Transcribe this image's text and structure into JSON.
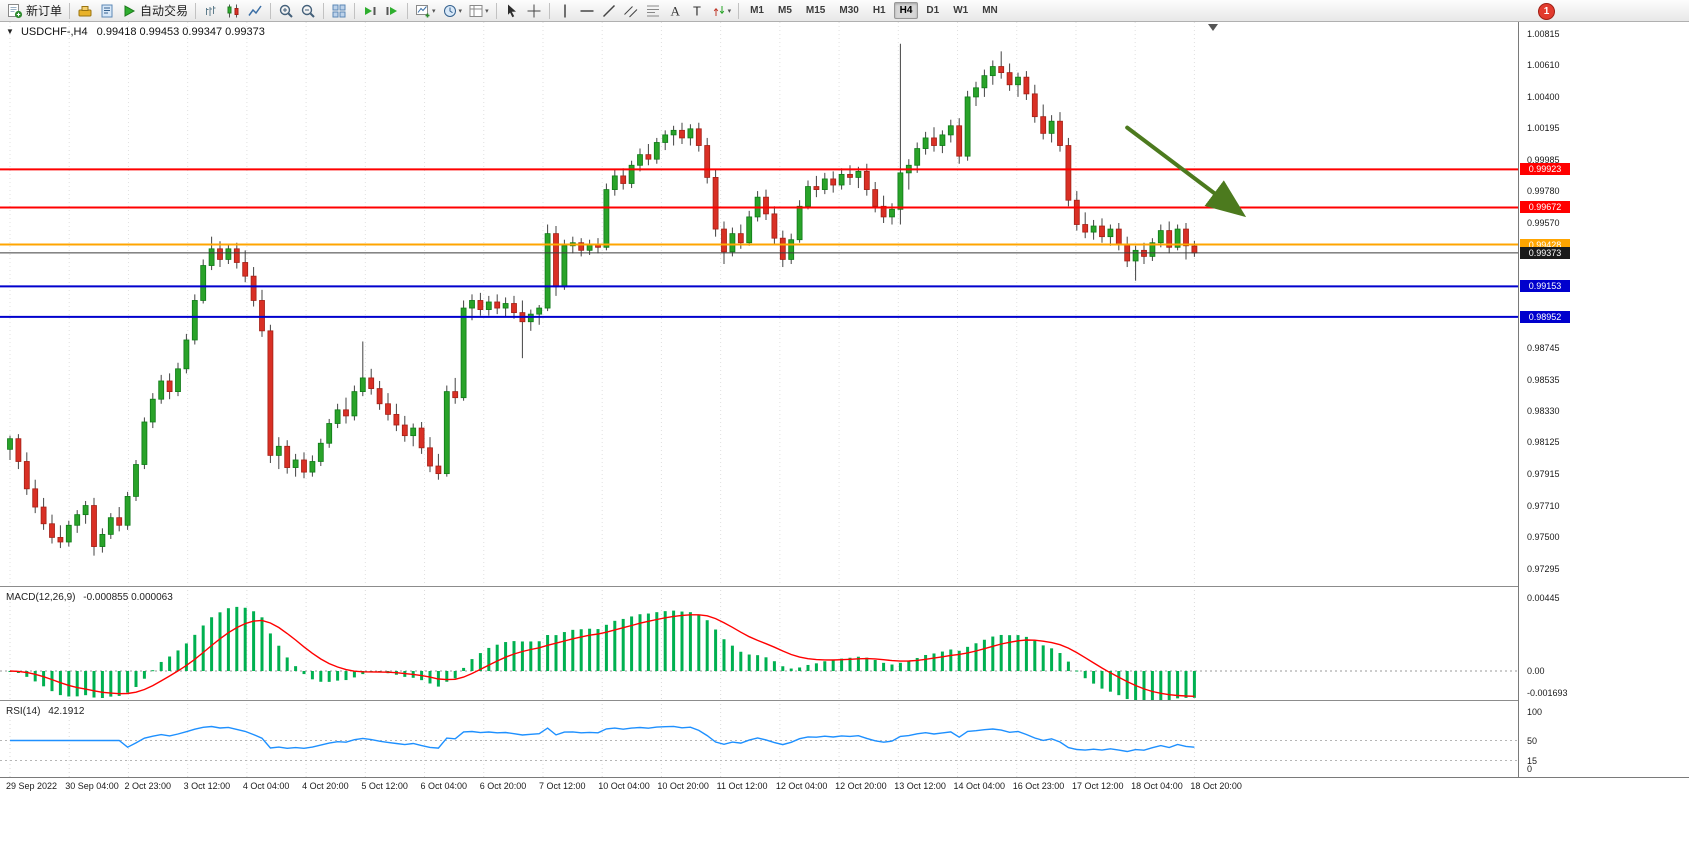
{
  "toolbar": {
    "new_order_label": "新订单",
    "autotrading_label": "自动交易",
    "timeframes": [
      "M1",
      "M5",
      "M15",
      "M30",
      "H1",
      "H4",
      "D1",
      "W1",
      "MN"
    ],
    "active_timeframe": "H4",
    "notification_badge": "1",
    "groups": [
      [
        {
          "icon": "new-order",
          "name": "new-order-button",
          "label": "新订单"
        }
      ],
      [
        {
          "icon": "expert-advisors"
        },
        {
          "icon": "scripts"
        },
        {
          "icon": "autotrading-play",
          "name": "autotrading-button",
          "label": "自动交易"
        }
      ],
      [
        {
          "icon": "bar-chart"
        },
        {
          "icon": "candlestick-chart"
        },
        {
          "icon": "line-chart"
        }
      ],
      [
        {
          "icon": "zoom-in"
        },
        {
          "icon": "zoom-out"
        }
      ],
      [
        {
          "icon": "tile-windows"
        }
      ],
      [
        {
          "icon": "auto-scroll"
        },
        {
          "icon": "chart-shift"
        }
      ],
      [
        {
          "icon": "new-chart",
          "dropdown": true
        },
        {
          "icon": "profiles",
          "dropdown": true
        },
        {
          "icon": "templates",
          "dropdown": true
        }
      ],
      [
        {
          "icon": "cursor"
        },
        {
          "icon": "crosshair"
        }
      ],
      [
        {
          "icon": "vertical-line"
        },
        {
          "icon": "horizontal-line"
        },
        {
          "icon": "trendline"
        },
        {
          "icon": "channel"
        },
        {
          "icon": "fibonacci"
        },
        {
          "icon": "text"
        },
        {
          "icon": "text-label"
        },
        {
          "icon": "arrows",
          "dropdown": true
        }
      ]
    ]
  },
  "chart": {
    "expander_icon": "▼",
    "shift_marker_icon": "▼"
  },
  "chart_data": {
    "type": "candlestick",
    "symbol": "USDCHF-",
    "timeframe": "H4",
    "title": "USDCHF-,H4",
    "ohlc_text": "0.99418 0.99453 0.99347 0.99373",
    "ohlc_display": {
      "open": "0.99418",
      "high": "0.99453",
      "low": "0.99347",
      "close": "0.99373"
    },
    "up_color": "#29A329",
    "up_border": "#0F7A18",
    "down_color": "#D93025",
    "down_border": "#A32016",
    "wick_color": "#444444",
    "grid_color": "#E0E0E0",
    "price_range": {
      "min": 0.972,
      "max": 1.0088
    },
    "price_axis_ticks": [
      "1.00815",
      "1.00610",
      "1.00400",
      "1.00195",
      "0.99985",
      "0.99780",
      "0.99570",
      "0.98745",
      "0.98535",
      "0.98330",
      "0.98125",
      "0.97915",
      "0.97710",
      "0.97500",
      "0.97295"
    ],
    "hlines": [
      {
        "price": 0.99923,
        "label": "0.99923",
        "color": "#FF0000",
        "width": 2
      },
      {
        "price": 0.99672,
        "label": "0.99672",
        "color": "#FF0000",
        "width": 2
      },
      {
        "price": 0.99428,
        "label": "0.99428",
        "color": "#FFA500",
        "width": 2
      },
      {
        "price": 0.99373,
        "label": "0.99373",
        "color": "#3C3C3C",
        "width": 1,
        "is_current": true
      },
      {
        "price": 0.99153,
        "label": "0.99153",
        "color": "#0000CD",
        "width": 2
      },
      {
        "price": 0.98952,
        "label": "0.98952",
        "color": "#0000CD",
        "width": 2
      }
    ],
    "arrow": {
      "i1": 133,
      "p1": 1.00198,
      "i2": 146.4,
      "p2": 0.9964,
      "color": "#4C7A1E"
    },
    "time_labels": [
      "29 Sep 2022",
      "30 Sep 04:00",
      "2 Oct 23:00",
      "3 Oct 12:00",
      "4 Oct 04:00",
      "4 Oct 20:00",
      "5 Oct 12:00",
      "6 Oct 04:00",
      "6 Oct 20:00",
      "7 Oct 12:00",
      "10 Oct 04:00",
      "10 Oct 20:00",
      "11 Oct 12:00",
      "12 Oct 04:00",
      "12 Oct 20:00",
      "13 Oct 12:00",
      "14 Oct 04:00",
      "16 Oct 23:00",
      "17 Oct 12:00",
      "18 Oct 04:00",
      "18 Oct 20:00"
    ],
    "macd": {
      "title": "MACD(12,26,9)",
      "values_text": "-0.000855 0.000063",
      "params": [
        12,
        26,
        9
      ],
      "axis_ticks": [
        {
          "value": 0.00445,
          "label": "0.00445"
        },
        {
          "value": 0,
          "label": "0.00"
        },
        {
          "value": -0.001693,
          "label": "-0.001693"
        }
      ],
      "range": {
        "min": -0.00164,
        "max": 0.0048
      },
      "histogram_color": "#00B050",
      "signal_color": "#FF0000"
    },
    "rsi": {
      "title": "RSI(14)",
      "value_text": "42.1912",
      "period": 14,
      "axis_ticks": [
        {
          "value": 100,
          "label": "100"
        },
        {
          "value": 50,
          "label": "50"
        },
        {
          "value": 15,
          "label": "15"
        },
        {
          "value": 0,
          "label": "0"
        }
      ],
      "levels": [
        50,
        15
      ],
      "range": {
        "min": -12,
        "max": 112
      },
      "line_color": "#1E90FF"
    },
    "candles": [
      [
        0.9808,
        0.9817,
        0.9801,
        0.9815
      ],
      [
        0.9815,
        0.9818,
        0.9795,
        0.98
      ],
      [
        0.98,
        0.9806,
        0.9778,
        0.9782
      ],
      [
        0.9782,
        0.9788,
        0.9766,
        0.977
      ],
      [
        0.977,
        0.9776,
        0.9755,
        0.9759
      ],
      [
        0.9759,
        0.9765,
        0.9746,
        0.975
      ],
      [
        0.975,
        0.9758,
        0.9743,
        0.9747
      ],
      [
        0.9747,
        0.9761,
        0.9744,
        0.9758
      ],
      [
        0.9758,
        0.9768,
        0.9753,
        0.9765
      ],
      [
        0.9765,
        0.9774,
        0.9759,
        0.9771
      ],
      [
        0.9771,
        0.9776,
        0.9738,
        0.9744
      ],
      [
        0.9744,
        0.9756,
        0.974,
        0.9752
      ],
      [
        0.9752,
        0.9766,
        0.9749,
        0.9763
      ],
      [
        0.9763,
        0.977,
        0.9754,
        0.9758
      ],
      [
        0.9758,
        0.978,
        0.9755,
        0.9777
      ],
      [
        0.9777,
        0.9801,
        0.9774,
        0.9798
      ],
      [
        0.9798,
        0.9829,
        0.9795,
        0.9826
      ],
      [
        0.9826,
        0.9845,
        0.9822,
        0.9841
      ],
      [
        0.9841,
        0.9857,
        0.9838,
        0.9853
      ],
      [
        0.9853,
        0.9858,
        0.9841,
        0.9846
      ],
      [
        0.9846,
        0.9865,
        0.9843,
        0.9861
      ],
      [
        0.9861,
        0.9884,
        0.9858,
        0.988
      ],
      [
        0.988,
        0.991,
        0.9877,
        0.9906
      ],
      [
        0.9906,
        0.9933,
        0.9904,
        0.9929
      ],
      [
        0.9929,
        0.9948,
        0.9926,
        0.994
      ],
      [
        0.994,
        0.9945,
        0.9928,
        0.9933
      ],
      [
        0.9933,
        0.9943,
        0.993,
        0.994
      ],
      [
        0.994,
        0.9944,
        0.9927,
        0.9931
      ],
      [
        0.9931,
        0.9939,
        0.9918,
        0.9922
      ],
      [
        0.9922,
        0.9928,
        0.9902,
        0.9906
      ],
      [
        0.9906,
        0.9913,
        0.9882,
        0.9886
      ],
      [
        0.9886,
        0.989,
        0.9799,
        0.9804
      ],
      [
        0.9804,
        0.9816,
        0.9795,
        0.981
      ],
      [
        0.981,
        0.9814,
        0.9792,
        0.9796
      ],
      [
        0.9796,
        0.9805,
        0.979,
        0.9801
      ],
      [
        0.9801,
        0.9806,
        0.9789,
        0.9793
      ],
      [
        0.9793,
        0.9804,
        0.979,
        0.98
      ],
      [
        0.98,
        0.9815,
        0.9797,
        0.9812
      ],
      [
        0.9812,
        0.9828,
        0.9809,
        0.9825
      ],
      [
        0.9825,
        0.9838,
        0.9822,
        0.9834
      ],
      [
        0.9834,
        0.9842,
        0.9825,
        0.983
      ],
      [
        0.983,
        0.985,
        0.9827,
        0.9846
      ],
      [
        0.9846,
        0.9879,
        0.9843,
        0.9855
      ],
      [
        0.9855,
        0.9861,
        0.9844,
        0.9848
      ],
      [
        0.9848,
        0.9853,
        0.9834,
        0.9838
      ],
      [
        0.9838,
        0.9845,
        0.9827,
        0.9831
      ],
      [
        0.9831,
        0.9838,
        0.982,
        0.9824
      ],
      [
        0.9824,
        0.983,
        0.9813,
        0.9817
      ],
      [
        0.9817,
        0.9825,
        0.981,
        0.9822
      ],
      [
        0.9822,
        0.9826,
        0.9805,
        0.9809
      ],
      [
        0.9809,
        0.9816,
        0.9793,
        0.9797
      ],
      [
        0.9797,
        0.9805,
        0.9788,
        0.9792
      ],
      [
        0.9792,
        0.985,
        0.979,
        0.9846
      ],
      [
        0.9846,
        0.9855,
        0.9838,
        0.9842
      ],
      [
        0.9842,
        0.9906,
        0.984,
        0.9901
      ],
      [
        0.9901,
        0.991,
        0.9893,
        0.9906
      ],
      [
        0.9906,
        0.9911,
        0.9896,
        0.99
      ],
      [
        0.99,
        0.9909,
        0.9896,
        0.9905
      ],
      [
        0.9905,
        0.991,
        0.9897,
        0.9901
      ],
      [
        0.9901,
        0.9908,
        0.9895,
        0.9904
      ],
      [
        0.9904,
        0.9909,
        0.9894,
        0.9898
      ],
      [
        0.9898,
        0.9906,
        0.9868,
        0.9892
      ],
      [
        0.9892,
        0.99,
        0.9886,
        0.9897
      ],
      [
        0.9897,
        0.9903,
        0.989,
        0.9901
      ],
      [
        0.9901,
        0.9956,
        0.9899,
        0.995
      ],
      [
        0.995,
        0.9955,
        0.9909,
        0.9915
      ],
      [
        0.9915,
        0.9946,
        0.9913,
        0.9942
      ],
      [
        0.9942,
        0.9948,
        0.9937,
        0.9944
      ],
      [
        0.9944,
        0.9947,
        0.9935,
        0.9939
      ],
      [
        0.9939,
        0.9946,
        0.9936,
        0.9943
      ],
      [
        0.9943,
        0.9947,
        0.9937,
        0.9941
      ],
      [
        0.9941,
        0.9983,
        0.9939,
        0.9979
      ],
      [
        0.9979,
        0.9992,
        0.9975,
        0.9988
      ],
      [
        0.9988,
        0.9993,
        0.9979,
        0.9983
      ],
      [
        0.9983,
        0.9998,
        0.998,
        0.9995
      ],
      [
        0.9995,
        1.0006,
        0.9991,
        1.0002
      ],
      [
        1.0002,
        1.0009,
        0.9995,
        0.9999
      ],
      [
        0.9999,
        1.0013,
        0.9996,
        1.001
      ],
      [
        1.001,
        1.0018,
        1.0005,
        1.0015
      ],
      [
        1.0015,
        1.0021,
        1.0008,
        1.0018
      ],
      [
        1.0018,
        1.0023,
        1.0009,
        1.0013
      ],
      [
        1.0013,
        1.0022,
        1.0008,
        1.0019
      ],
      [
        1.0019,
        1.0023,
        1.0004,
        1.0008
      ],
      [
        1.0008,
        1.0013,
        0.9983,
        0.9987
      ],
      [
        0.9987,
        0.9992,
        0.9948,
        0.9953
      ],
      [
        0.9953,
        0.9958,
        0.993,
        0.9938
      ],
      [
        0.9938,
        0.9954,
        0.9935,
        0.995
      ],
      [
        0.995,
        0.9956,
        0.994,
        0.9944
      ],
      [
        0.9944,
        0.9965,
        0.9942,
        0.9961
      ],
      [
        0.9961,
        0.9978,
        0.9958,
        0.9974
      ],
      [
        0.9974,
        0.9979,
        0.9959,
        0.9963
      ],
      [
        0.9963,
        0.9968,
        0.9943,
        0.9947
      ],
      [
        0.9947,
        0.9952,
        0.9928,
        0.9933
      ],
      [
        0.9933,
        0.995,
        0.993,
        0.9946
      ],
      [
        0.9946,
        0.9972,
        0.9944,
        0.9968
      ],
      [
        0.9968,
        0.9985,
        0.9966,
        0.9981
      ],
      [
        0.9981,
        0.9988,
        0.9974,
        0.9979
      ],
      [
        0.9979,
        0.999,
        0.9976,
        0.9986
      ],
      [
        0.9986,
        0.9991,
        0.9977,
        0.9982
      ],
      [
        0.9982,
        0.9993,
        0.9979,
        0.9989
      ],
      [
        0.9989,
        0.9995,
        0.9982,
        0.9987
      ],
      [
        0.9987,
        0.9994,
        0.998,
        0.9991
      ],
      [
        0.9991,
        0.9996,
        0.9975,
        0.9979
      ],
      [
        0.9979,
        0.9984,
        0.9964,
        0.9968
      ],
      [
        0.9968,
        0.9975,
        0.9957,
        0.9961
      ],
      [
        0.9961,
        0.997,
        0.9956,
        0.9966
      ],
      [
        0.9966,
        1.0075,
        0.9956,
        0.999
      ],
      [
        0.999,
        0.9999,
        0.9979,
        0.9995
      ],
      [
        0.9995,
        1.001,
        0.999,
        1.0006
      ],
      [
        1.0006,
        1.0017,
        1.0002,
        1.0013
      ],
      [
        1.0013,
        1.002,
        1.0004,
        1.0008
      ],
      [
        1.0008,
        1.0018,
        1.0003,
        1.0015
      ],
      [
        1.0015,
        1.0025,
        1.001,
        1.0021
      ],
      [
        1.0021,
        1.0026,
        0.9996,
        1.0001
      ],
      [
        1.0001,
        1.0044,
        0.9998,
        1.004
      ],
      [
        1.004,
        1.005,
        1.0034,
        1.0046
      ],
      [
        1.0046,
        1.0058,
        1.004,
        1.0054
      ],
      [
        1.0054,
        1.0064,
        1.0048,
        1.006
      ],
      [
        1.006,
        1.007,
        1.0052,
        1.0056
      ],
      [
        1.0056,
        1.0062,
        1.0044,
        1.0048
      ],
      [
        1.0048,
        1.0056,
        1.004,
        1.0053
      ],
      [
        1.0053,
        1.0057,
        1.0038,
        1.0042
      ],
      [
        1.0042,
        1.0048,
        1.0023,
        1.0027
      ],
      [
        1.0027,
        1.0035,
        1.0012,
        1.0016
      ],
      [
        1.0016,
        1.0028,
        1.001,
        1.0024
      ],
      [
        1.0024,
        1.003,
        1.0004,
        1.0008
      ],
      [
        1.0008,
        1.0013,
        0.9968,
        0.9972
      ],
      [
        0.9972,
        0.9978,
        0.9952,
        0.9956
      ],
      [
        0.9956,
        0.9964,
        0.9947,
        0.9951
      ],
      [
        0.9951,
        0.9959,
        0.9946,
        0.9955
      ],
      [
        0.9955,
        0.996,
        0.9944,
        0.9948
      ],
      [
        0.9948,
        0.9956,
        0.9942,
        0.9953
      ],
      [
        0.9953,
        0.9957,
        0.9939,
        0.9943
      ],
      [
        0.9943,
        0.9948,
        0.9928,
        0.9932
      ],
      [
        0.9932,
        0.9942,
        0.9919,
        0.9939
      ],
      [
        0.9939,
        0.9944,
        0.993,
        0.9935
      ],
      [
        0.9935,
        0.9947,
        0.9932,
        0.9944
      ],
      [
        0.9944,
        0.9956,
        0.9941,
        0.9952
      ],
      [
        0.9952,
        0.9958,
        0.9937,
        0.9941
      ],
      [
        0.9941,
        0.9956,
        0.9939,
        0.9953
      ],
      [
        0.9953,
        0.9957,
        0.9933,
        0.9942
      ],
      [
        0.99418,
        0.99453,
        0.99347,
        0.99373
      ]
    ]
  }
}
